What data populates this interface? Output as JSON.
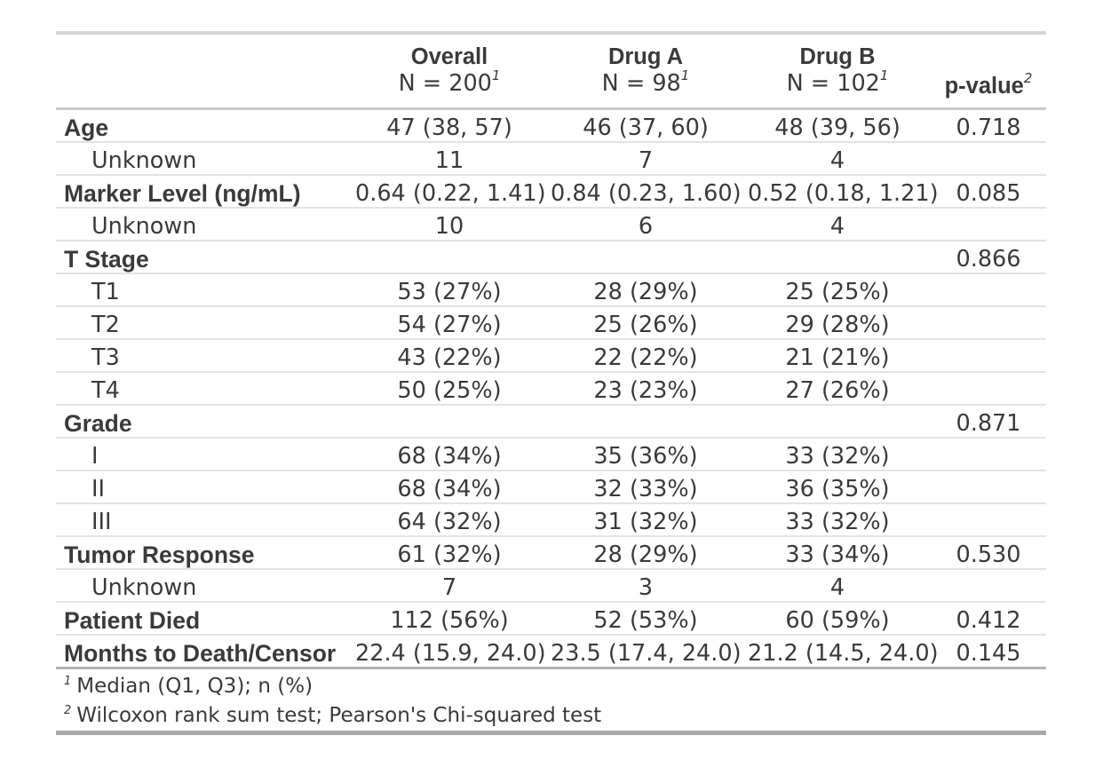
{
  "chart_data": {
    "type": "table",
    "columns": [
      {
        "label": "",
        "n": "",
        "sup": ""
      },
      {
        "label": "Overall",
        "n": "N = 200",
        "sup": "1"
      },
      {
        "label": "Drug A",
        "n": "N = 98",
        "sup": "1"
      },
      {
        "label": "Drug B",
        "n": "N = 102",
        "sup": "1"
      },
      {
        "label": "p-value",
        "n": "",
        "sup": "2"
      }
    ],
    "rows": [
      {
        "label": "Age",
        "overall": "47 (38, 57)",
        "druga": "46 (37, 60)",
        "drugb": "48 (39, 56)",
        "p": "0.718"
      },
      {
        "label": "Unknown",
        "overall": "11",
        "druga": "7",
        "drugb": "4",
        "p": ""
      },
      {
        "label": "Marker Level (ng/mL)",
        "overall": "0.64 (0.22, 1.41)",
        "druga": "0.84 (0.23, 1.60)",
        "drugb": "0.52 (0.18, 1.21)",
        "p": "0.085"
      },
      {
        "label": "Unknown",
        "overall": "10",
        "druga": "6",
        "drugb": "4",
        "p": ""
      },
      {
        "label": "T Stage",
        "overall": "",
        "druga": "",
        "drugb": "",
        "p": "0.866"
      },
      {
        "label": "T1",
        "overall": "53 (27%)",
        "druga": "28 (29%)",
        "drugb": "25 (25%)",
        "p": ""
      },
      {
        "label": "T2",
        "overall": "54 (27%)",
        "druga": "25 (26%)",
        "drugb": "29 (28%)",
        "p": ""
      },
      {
        "label": "T3",
        "overall": "43 (22%)",
        "druga": "22 (22%)",
        "drugb": "21 (21%)",
        "p": ""
      },
      {
        "label": "T4",
        "overall": "50 (25%)",
        "druga": "23 (23%)",
        "drugb": "27 (26%)",
        "p": ""
      },
      {
        "label": "Grade",
        "overall": "",
        "druga": "",
        "drugb": "",
        "p": "0.871"
      },
      {
        "label": "I",
        "overall": "68 (34%)",
        "druga": "35 (36%)",
        "drugb": "33 (32%)",
        "p": ""
      },
      {
        "label": "II",
        "overall": "68 (34%)",
        "druga": "32 (33%)",
        "drugb": "36 (35%)",
        "p": ""
      },
      {
        "label": "III",
        "overall": "64 (32%)",
        "druga": "31 (32%)",
        "drugb": "33 (32%)",
        "p": ""
      },
      {
        "label": "Tumor Response",
        "overall": "61 (32%)",
        "druga": "28 (29%)",
        "drugb": "33 (34%)",
        "p": "0.530"
      },
      {
        "label": "Unknown",
        "overall": "7",
        "druga": "3",
        "drugb": "4",
        "p": ""
      },
      {
        "label": "Patient Died",
        "overall": "112 (56%)",
        "druga": "52 (53%)",
        "drugb": "60 (59%)",
        "p": "0.412"
      },
      {
        "label": "Months to Death/Censor",
        "overall": "22.4 (15.9, 24.0)",
        "druga": "23.5 (17.4, 24.0)",
        "drugb": "21.2 (14.5, 24.0)",
        "p": "0.145"
      }
    ],
    "footnotes": [
      {
        "sup": "1",
        "text": "Median (Q1, Q3); n (%)"
      },
      {
        "sup": "2",
        "text": "Wilcoxon rank sum test; Pearson's Chi-squared test"
      }
    ]
  }
}
